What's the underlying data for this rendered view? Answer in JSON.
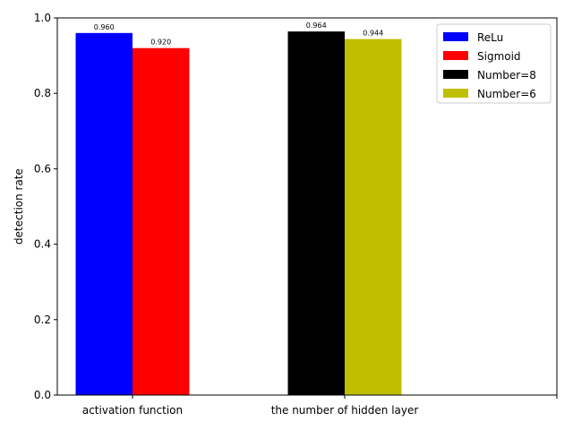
{
  "chart_data": {
    "type": "bar",
    "title": "",
    "xlabel": "",
    "ylabel": "detection rate",
    "ylim": [
      0,
      1.0
    ],
    "yticks": [
      "0.0",
      "0.2",
      "0.4",
      "0.6",
      "0.8",
      "1.0"
    ],
    "grid": false,
    "legend_position": "top-right",
    "groups": [
      {
        "category": "activation function",
        "bars": [
          {
            "series": "ReLu",
            "value": 0.96,
            "label": "0.960"
          },
          {
            "series": "Sigmoid",
            "value": 0.92,
            "label": "0.920"
          }
        ]
      },
      {
        "category": "the number of hidden layer",
        "bars": [
          {
            "series": "Number=8",
            "value": 0.964,
            "label": "0.964"
          },
          {
            "series": "Number=6",
            "value": 0.944,
            "label": "0.944"
          }
        ]
      }
    ],
    "series": [
      {
        "name": "ReLu",
        "color": "#0000ff"
      },
      {
        "name": "Sigmoid",
        "color": "#ff0000"
      },
      {
        "name": "Number=8",
        "color": "#000000"
      },
      {
        "name": "Number=6",
        "color": "#bfbf00"
      }
    ]
  }
}
